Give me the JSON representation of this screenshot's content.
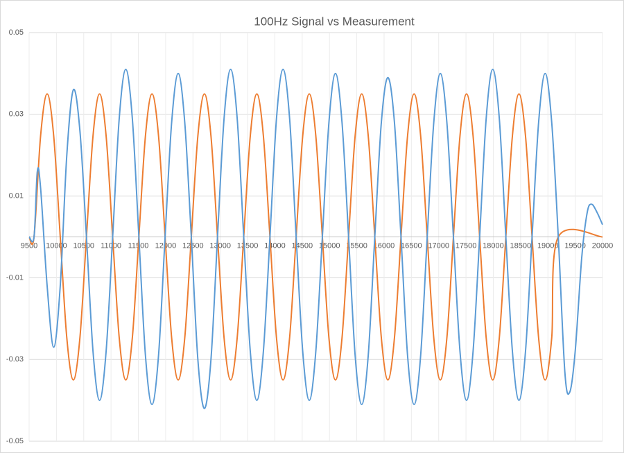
{
  "chart_data": {
    "type": "line",
    "title": "100Hz Signal vs Measurement",
    "xlim": [
      9500,
      20000
    ],
    "xticks": [
      9500,
      10000,
      10500,
      11000,
      11500,
      12000,
      12500,
      13000,
      13500,
      14000,
      14500,
      15000,
      15500,
      16000,
      16500,
      17000,
      17500,
      18000,
      18500,
      19000,
      19500,
      20000
    ],
    "ylim": [
      -0.05,
      0.05
    ],
    "yticks": [
      -0.05,
      -0.03,
      -0.01,
      0.01,
      0.03,
      0.05
    ],
    "grid": true,
    "series": [
      {
        "color": "#ed7d31",
        "x": [
          9500,
          9590,
          9710,
          9830,
          9950,
          10070,
          10190,
          10310,
          10430,
          10550,
          10670,
          10790,
          10910,
          11030,
          11150,
          11270,
          11390,
          11510,
          11630,
          11750,
          11870,
          11990,
          12110,
          12230,
          12350,
          12470,
          12590,
          12710,
          12830,
          12950,
          13070,
          13190,
          13310,
          13430,
          13550,
          13670,
          13790,
          13910,
          14030,
          14150,
          14270,
          14390,
          14510,
          14630,
          14750,
          14870,
          14990,
          15110,
          15230,
          15350,
          15470,
          15590,
          15710,
          15830,
          15950,
          16070,
          16190,
          16310,
          16430,
          16550,
          16670,
          16790,
          16910,
          17030,
          17150,
          17270,
          17390,
          17510,
          17630,
          17750,
          17870,
          17990,
          18110,
          18230,
          18350,
          18470,
          18590,
          18710,
          18830,
          18950,
          19070,
          19190,
          20000
        ],
        "values": [
          0,
          0,
          0.0247,
          0.035,
          0.0247,
          0,
          -0.0247,
          -0.035,
          -0.0247,
          0,
          0.0247,
          0.035,
          0.0247,
          0,
          -0.0247,
          -0.035,
          -0.0247,
          0,
          0.0247,
          0.035,
          0.0247,
          0,
          -0.0247,
          -0.035,
          -0.0247,
          0,
          0.0247,
          0.035,
          0.0247,
          0,
          -0.0247,
          -0.035,
          -0.0247,
          0,
          0.0247,
          0.035,
          0.0247,
          0,
          -0.0247,
          -0.035,
          -0.0247,
          0,
          0.0247,
          0.035,
          0.0247,
          0,
          -0.0247,
          -0.035,
          -0.0247,
          0,
          0.0247,
          0.035,
          0.0247,
          0,
          -0.0247,
          -0.035,
          -0.0247,
          0,
          0.0247,
          0.035,
          0.0247,
          0,
          -0.0247,
          -0.035,
          -0.0247,
          0,
          0.0247,
          0.035,
          0.0247,
          0,
          -0.0247,
          -0.035,
          -0.0247,
          0,
          0.0247,
          0.035,
          0.0247,
          0,
          -0.0247,
          -0.035,
          -0.0247,
          0,
          0
        ]
      },
      {
        "color": "#5b9bd5",
        "x": [
          9500,
          9590,
          9650,
          9710,
          9830,
          9950,
          10070,
          10190,
          10310,
          10430,
          10550,
          10670,
          10790,
          10910,
          11030,
          11150,
          11270,
          11390,
          11510,
          11630,
          11750,
          11870,
          11990,
          12110,
          12230,
          12350,
          12470,
          12590,
          12710,
          12830,
          12950,
          13070,
          13190,
          13310,
          13430,
          13550,
          13670,
          13790,
          13910,
          14030,
          14150,
          14270,
          14390,
          14510,
          14630,
          14750,
          14870,
          14990,
          15110,
          15230,
          15350,
          15470,
          15590,
          15710,
          15830,
          15950,
          16070,
          16190,
          16310,
          16430,
          16550,
          16670,
          16790,
          16910,
          17030,
          17150,
          17270,
          17390,
          17510,
          17630,
          17750,
          17870,
          17990,
          18110,
          18230,
          18350,
          18470,
          18590,
          18710,
          18830,
          18950,
          19070,
          19190,
          19310,
          19400,
          19500,
          19620,
          19720,
          19800,
          19900,
          20000
        ],
        "values": [
          0,
          0,
          0.016,
          0.012,
          -0.012,
          -0.027,
          -0.012,
          0.02,
          0.036,
          0.026,
          0,
          -0.028,
          -0.04,
          -0.028,
          0,
          0.029,
          0.041,
          0.029,
          0,
          -0.029,
          -0.041,
          -0.029,
          0,
          0.028,
          0.04,
          0.028,
          0,
          -0.03,
          -0.042,
          -0.03,
          0,
          0.029,
          0.041,
          0.029,
          0,
          -0.028,
          -0.04,
          -0.028,
          0,
          0.029,
          0.041,
          0.029,
          0,
          -0.028,
          -0.04,
          -0.028,
          0,
          0.028,
          0.04,
          0.028,
          0,
          -0.029,
          -0.041,
          -0.029,
          0,
          0.028,
          0.039,
          0.028,
          0,
          -0.029,
          -0.041,
          -0.029,
          0,
          0.028,
          0.04,
          0.028,
          0,
          -0.028,
          -0.04,
          -0.028,
          0,
          0.029,
          0.041,
          0.029,
          0,
          -0.028,
          -0.04,
          -0.028,
          0,
          0.028,
          0.04,
          0.028,
          0,
          -0.033,
          -0.038,
          -0.028,
          -0.005,
          0.006,
          0.008,
          0.006,
          0.003
        ]
      }
    ]
  }
}
